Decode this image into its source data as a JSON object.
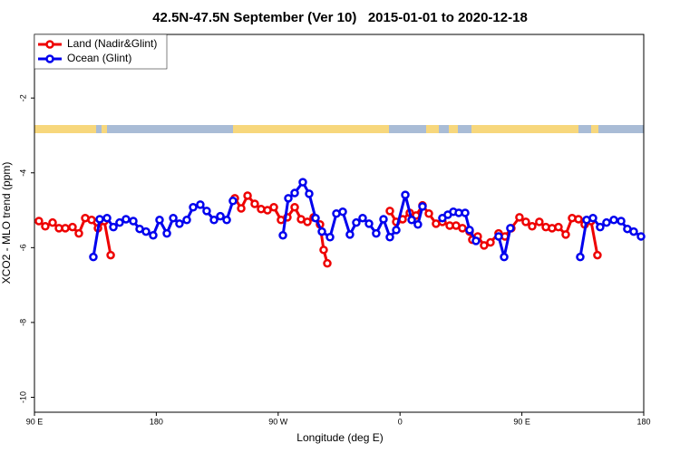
{
  "chart_data": {
    "type": "line",
    "title": "42.5N-47.5N September (Ver 10)   2015-01-01 to 2020-12-18",
    "xlabel": "Longitude (deg E)",
    "ylabel": "XCO2 - MLO trend (ppm)",
    "xlim": [
      90,
      540
    ],
    "ylim": [
      -10.4,
      -0.3
    ],
    "xticks": [
      {
        "value": 90,
        "label": "90 E"
      },
      180,
      {
        "value": 270,
        "label": "90 W"
      },
      {
        "value": 360,
        "label": "0"
      },
      {
        "value": 450,
        "label": "90 E"
      },
      {
        "value": 540,
        "label": "180"
      }
    ],
    "yticks": [
      -2,
      -4,
      -6,
      -8,
      -10
    ],
    "legend": "upper left",
    "series": [
      {
        "name": "Land (Nadir&Glint)",
        "color": "#ee0000",
        "x": [
          93.3,
          98.0,
          103.4,
          108.1,
          112.8,
          118.1,
          122.8,
          127.5,
          132.2,
          136.9,
          141.6,
          146.3,
          null,
          238.0,
          242.7,
          247.4,
          252.7,
          257.4,
          262.1,
          266.8,
          272.1,
          276.8,
          282.2,
          286.9,
          291.6,
          296.2,
          300.9,
          303.6,
          306.3,
          null,
          352.5,
          357.2,
          361.9,
          367.2,
          371.9,
          376.6,
          381.3,
          386.6,
          391.3,
          396.7,
          401.4,
          406.1,
          411.4,
          413.4,
          417.4,
          422.1,
          426.8,
          432.8,
          437.5,
          442.2,
          448.2,
          452.9,
          457.6,
          462.9,
          467.7,
          472.3,
          477.0,
          482.4,
          487.1,
          491.8,
          496.4,
          501.1,
          505.8
        ],
        "values": [
          -5.29,
          -5.43,
          -5.33,
          -5.48,
          -5.48,
          -5.45,
          -5.62,
          -5.21,
          -5.26,
          -5.48,
          -5.29,
          -6.2,
          null,
          -4.68,
          -4.95,
          -4.61,
          -4.83,
          -4.97,
          -5.0,
          -4.92,
          -5.26,
          -5.19,
          -4.92,
          -5.24,
          -5.31,
          -5.19,
          -5.38,
          -6.06,
          -6.42,
          null,
          -5.02,
          -5.31,
          -5.24,
          -5.07,
          -5.14,
          -4.87,
          -5.09,
          -5.36,
          -5.31,
          -5.41,
          -5.41,
          -5.48,
          -5.57,
          -5.79,
          -5.7,
          -5.94,
          -5.86,
          -5.62,
          -5.7,
          -5.48,
          -5.19,
          -5.31,
          -5.43,
          -5.31,
          -5.45,
          -5.48,
          -5.45,
          -5.65,
          -5.21,
          -5.24,
          -5.38,
          -5.29,
          -6.2
        ]
      },
      {
        "name": "Ocean (Glint)",
        "color": "#0000ee",
        "x": [
          133.5,
          138.2,
          143.6,
          148.3,
          152.9,
          157.6,
          163.0,
          167.7,
          172.4,
          177.7,
          182.4,
          187.8,
          192.5,
          197.1,
          202.5,
          207.2,
          212.5,
          217.2,
          222.6,
          227.3,
          232.0,
          236.6,
          null,
          273.5,
          277.5,
          282.2,
          288.2,
          292.9,
          297.6,
          302.3,
          308.3,
          313.0,
          317.7,
          323.0,
          327.7,
          332.4,
          337.1,
          342.4,
          347.8,
          352.5,
          357.2,
          363.9,
          368.6,
          373.2,
          376.6,
          null,
          391.3,
          395.3,
          399.4,
          403.4,
          408.1,
          411.4,
          416.1,
          null,
          432.8,
          436.9,
          441.5,
          null,
          493.1,
          497.8,
          502.5,
          507.8,
          512.5,
          517.9,
          523.3,
          527.9,
          532.6,
          538.0
        ],
        "values": [
          -6.25,
          -5.24,
          -5.21,
          -5.45,
          -5.33,
          -5.24,
          -5.29,
          -5.5,
          -5.57,
          -5.67,
          -5.26,
          -5.62,
          -5.21,
          -5.36,
          -5.26,
          -4.92,
          -4.85,
          -5.02,
          -5.26,
          -5.16,
          -5.26,
          -4.75,
          null,
          -5.67,
          -4.68,
          -4.54,
          -4.25,
          -4.56,
          -5.21,
          -5.57,
          -5.72,
          -5.09,
          -5.04,
          -5.65,
          -5.33,
          -5.21,
          -5.36,
          -5.62,
          -5.24,
          -5.72,
          -5.53,
          -4.59,
          -5.26,
          -5.38,
          -4.9,
          null,
          -5.21,
          -5.12,
          -5.04,
          -5.07,
          -5.07,
          -5.53,
          -5.82,
          null,
          -5.7,
          -6.25,
          -5.48,
          null,
          -6.25,
          -5.26,
          -5.21,
          -5.45,
          -5.33,
          -5.26,
          -5.29,
          -5.5,
          -5.57,
          -5.7
        ]
      }
    ]
  }
}
